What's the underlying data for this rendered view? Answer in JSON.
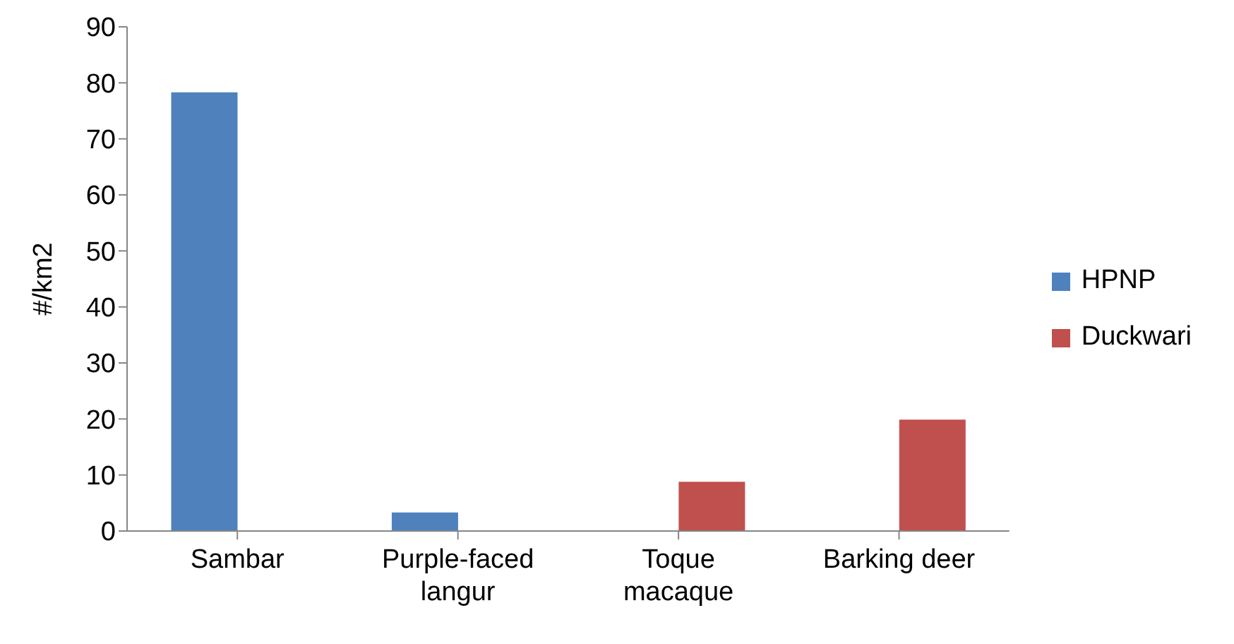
{
  "chart_data": {
    "type": "bar",
    "ylabel": "#/km2",
    "categories": [
      "Sambar",
      "Purple-faced langur",
      "Toque macaque",
      "Barking deer"
    ],
    "series": [
      {
        "name": "HPNP",
        "color": "#4f81bd",
        "values": [
          78.3,
          3.3,
          null,
          null
        ]
      },
      {
        "name": "Duckwari",
        "color": "#c0504d",
        "values": [
          null,
          null,
          8.8,
          19.9
        ]
      }
    ],
    "ylim": [
      0,
      90
    ],
    "yticks": [
      0,
      10,
      20,
      30,
      40,
      50,
      60,
      70,
      80,
      90
    ],
    "legend": "right"
  }
}
